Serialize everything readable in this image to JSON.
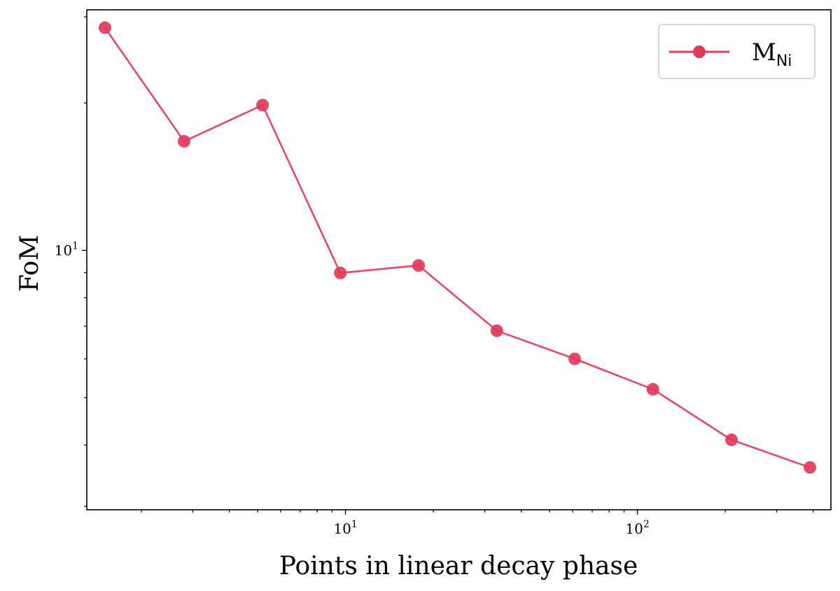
{
  "chart_data": {
    "type": "line",
    "xlabel": "Points in linear decay phase",
    "ylabel": "FoM",
    "xscale": "log",
    "yscale": "log",
    "xlim": [
      1.3,
      460
    ],
    "ylim": [
      2.95,
      31
    ],
    "grid": false,
    "legend_position": "top-right",
    "xticks": [
      {
        "value": 10,
        "base": "10",
        "exp": "1"
      },
      {
        "value": 100,
        "base": "10",
        "exp": "2"
      }
    ],
    "yticks": [
      {
        "value": 10,
        "base": "10",
        "exp": "1"
      }
    ],
    "series": [
      {
        "name": "M",
        "name_sub": "Ni",
        "color": "#e03a5a",
        "x": [
          1.5,
          2.8,
          5.2,
          9.6,
          17.8,
          33,
          61,
          113,
          210,
          390
        ],
        "y": [
          28.5,
          16.7,
          19.8,
          8.99,
          9.31,
          6.85,
          6.0,
          5.2,
          4.1,
          3.6
        ]
      }
    ]
  }
}
